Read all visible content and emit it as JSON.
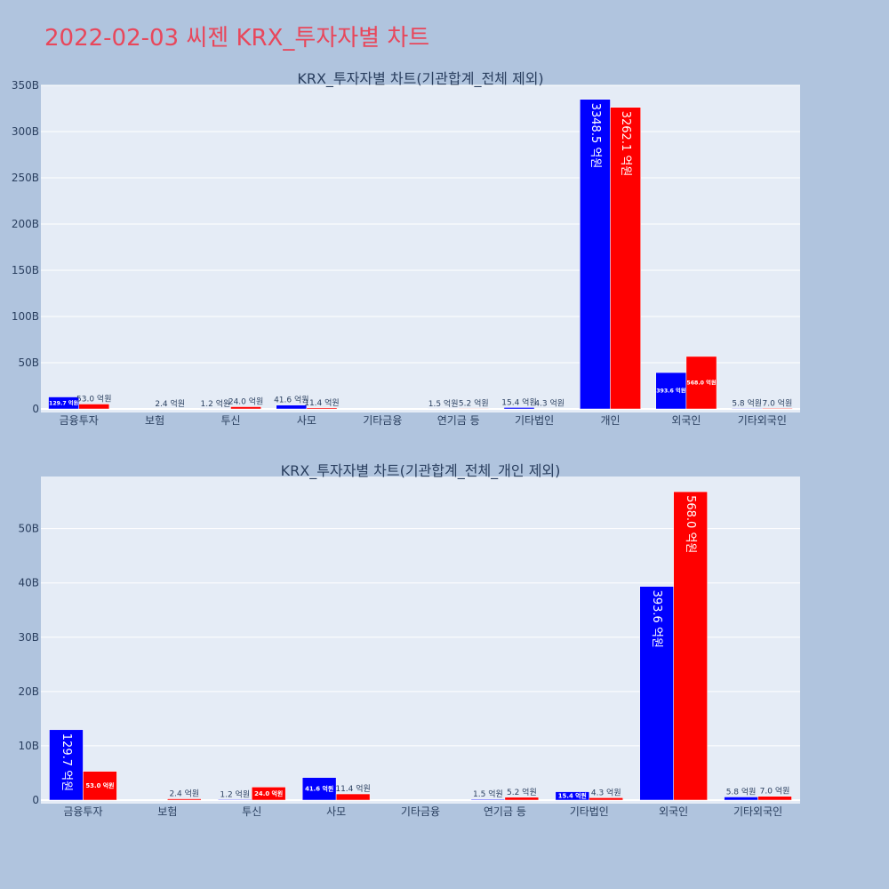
{
  "page": {
    "title": "2022-02-03 씨젠 KRX_투자자별 차트"
  },
  "colors": {
    "background": "#b0c4de",
    "plot_bg": "#e5ecf6",
    "buy": "#0000ff",
    "sell": "#ff0000",
    "title": "#e8475b",
    "text": "#2a3f5f"
  },
  "chart_data": [
    {
      "type": "bar",
      "title": "KRX_투자자별 차트(기관합계_전체 제외)",
      "categories": [
        "금융투자",
        "보험",
        "투신",
        "사모",
        "기타금융",
        "연기금 등",
        "기타법인",
        "개인",
        "외국인",
        "기타외국인"
      ],
      "series": [
        {
          "color": "#0000ff",
          "values": [
            12.97,
            0,
            0.12,
            4.16,
            0,
            0.15,
            1.54,
            334.85,
            39.36,
            0.58
          ],
          "labels": [
            "129.7 억원",
            "",
            "1.2 억원",
            "41.6 억원",
            "",
            "1.5 억원",
            "15.4 억원",
            "3348.5 억원",
            "393.6 억원",
            "5.8 억원"
          ]
        },
        {
          "color": "#ff0000",
          "values": [
            5.3,
            0.24,
            2.4,
            1.14,
            0,
            0.52,
            0.43,
            326.21,
            56.8,
            0.7
          ],
          "labels": [
            "53.0 억원",
            "2.4 억원",
            "24.0 억원",
            "11.4 억원",
            "",
            "5.2 억원",
            "4.3 억원",
            "3262.1 억원",
            "568.0 억원",
            "7.0 억원"
          ]
        }
      ],
      "yticks": [
        "0",
        "50B",
        "100B",
        "150B",
        "200B",
        "250B",
        "300B",
        "350B"
      ],
      "ylim": [
        0,
        350
      ],
      "grid": true
    },
    {
      "type": "bar",
      "title": "KRX_투자자별 차트(기관합계_전체_개인 제외)",
      "categories": [
        "금융투자",
        "보험",
        "투신",
        "사모",
        "기타금융",
        "연기금 등",
        "기타법인",
        "외국인",
        "기타외국인"
      ],
      "series": [
        {
          "color": "#0000ff",
          "values": [
            12.97,
            0,
            0.12,
            4.16,
            0,
            0.15,
            1.54,
            39.36,
            0.58
          ],
          "labels": [
            "129.7 억원",
            "",
            "1.2 억원",
            "41.6 억원",
            "",
            "1.5 억원",
            "15.4 억원",
            "393.6 억원",
            "5.8 억원"
          ]
        },
        {
          "color": "#ff0000",
          "values": [
            5.3,
            0.24,
            2.4,
            1.14,
            0,
            0.52,
            0.43,
            56.8,
            0.7
          ],
          "labels": [
            "53.0 억원",
            "2.4 억원",
            "24.0 억원",
            "11.4 억원",
            "",
            "5.2 억원",
            "4.3 억원",
            "568.0 억원",
            "7.0 억원"
          ]
        }
      ],
      "yticks": [
        "0",
        "10B",
        "20B",
        "30B",
        "40B",
        "50B"
      ],
      "ylim": [
        0,
        59.6
      ],
      "grid": true
    }
  ]
}
